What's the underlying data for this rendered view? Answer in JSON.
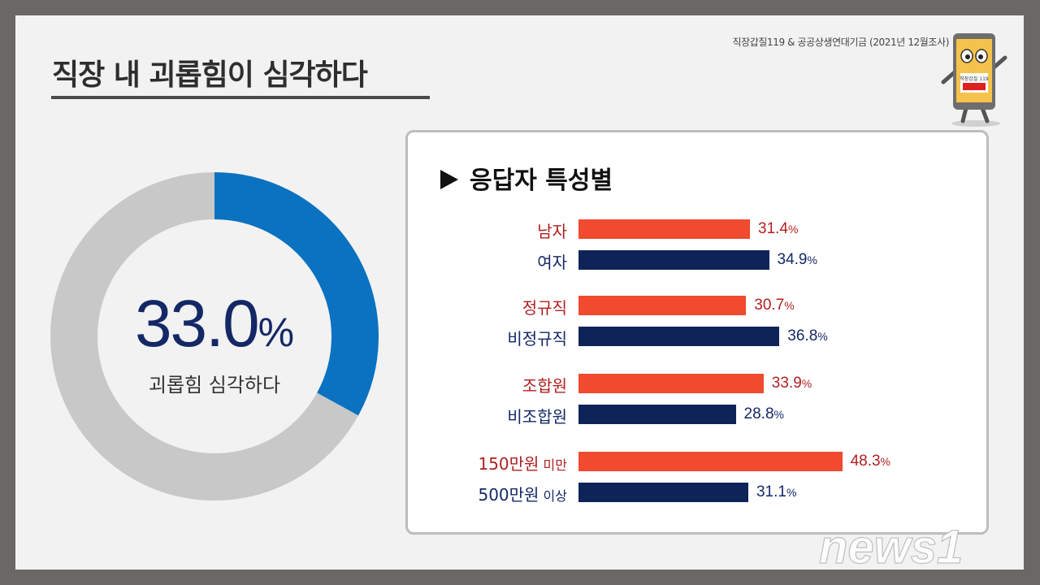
{
  "title": "직장 내 괴롭힘이 심각하다",
  "source": "직장갑질119 & 공공상생연대기금 (2021년 12월조사)",
  "mascot_text": "직장갑질 119",
  "donut": {
    "value": "33.0",
    "unit": "%",
    "label": "괴롭힘 심각하다"
  },
  "panel_title": "응답자 특성별",
  "watermark": "news1",
  "colors": {
    "highlight": "#f04a2f",
    "navy": "#0e2459",
    "donut_fill": "#0a72c1",
    "donut_rest": "#c8c8c8"
  },
  "chart_data": [
    {
      "type": "pie",
      "values": [
        33.0,
        67.0
      ],
      "categories": [
        "괴롭힘 심각하다",
        ""
      ],
      "unit": "%"
    },
    {
      "type": "bar",
      "orientation": "horizontal",
      "title": "응답자 특성별",
      "unit": "%",
      "groups": [
        {
          "bars": [
            {
              "label": "남자",
              "sub": "",
              "value": 31.4,
              "display": "31.4"
            },
            {
              "label": "여자",
              "sub": "",
              "value": 34.9,
              "display": "34.9"
            }
          ]
        },
        {
          "bars": [
            {
              "label": "정규직",
              "sub": "",
              "value": 30.7,
              "display": "30.7"
            },
            {
              "label": "비정규직",
              "sub": "",
              "value": 36.8,
              "display": "36.8"
            }
          ]
        },
        {
          "bars": [
            {
              "label": "조합원",
              "sub": "",
              "value": 33.9,
              "display": "33.9"
            },
            {
              "label": "비조합원",
              "sub": "",
              "value": 28.8,
              "display": "28.8"
            }
          ]
        },
        {
          "bars": [
            {
              "label": "150만원",
              "sub": "미만",
              "value": 48.3,
              "display": "48.3"
            },
            {
              "label": "500만원",
              "sub": "이상",
              "value": 31.1,
              "display": "31.1"
            }
          ]
        }
      ]
    }
  ]
}
